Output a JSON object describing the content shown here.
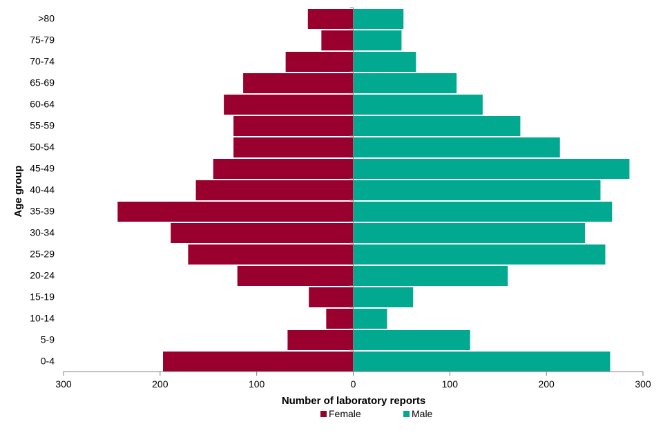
{
  "chart_data": {
    "type": "bar",
    "orientation": "horizontal-diverging",
    "categories": [
      "0-4",
      "5-9",
      "10-14",
      "15-19",
      "20-24",
      "25-29",
      "30-34",
      "35-39",
      "40-44",
      "45-49",
      "50-54",
      "55-59",
      "60-64",
      "65-69",
      "70-74",
      "75-79",
      ">80"
    ],
    "series": [
      {
        "name": "Female",
        "color": "#99002E",
        "values": [
          197,
          68,
          28,
          46,
          120,
          171,
          189,
          244,
          163,
          145,
          124,
          124,
          134,
          114,
          70,
          33,
          47
        ]
      },
      {
        "name": "Male",
        "color": "#00A98F",
        "values": [
          266,
          121,
          35,
          62,
          160,
          261,
          240,
          268,
          256,
          286,
          214,
          173,
          134,
          107,
          65,
          50,
          52
        ]
      }
    ],
    "xlabel": "Number of laboratory reports",
    "ylabel": "Age group",
    "xlim": [
      -300,
      300
    ],
    "xticks": [
      "300",
      "200",
      "100",
      "0",
      "100",
      "200",
      "300"
    ],
    "grid": false,
    "legend_position": "bottom"
  }
}
